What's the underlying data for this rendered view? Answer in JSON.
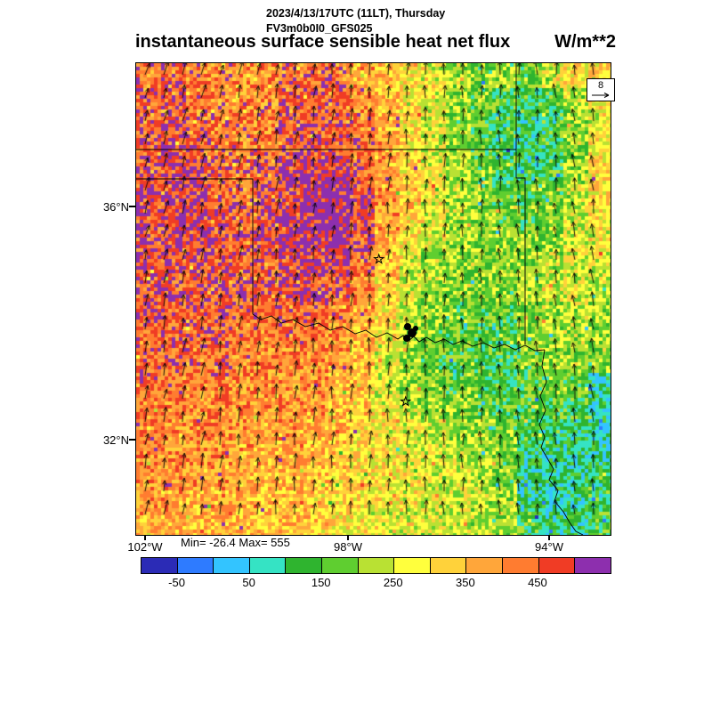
{
  "header": {
    "datetime_line": "2023/4/13/17UTC (11LT), Thursday",
    "model_line": "FV3m0b0I0_GFS025",
    "title": "instantaneous surface sensible heat net flux",
    "units": "W/m**2"
  },
  "map": {
    "lat_labels": [
      {
        "text": "36°N"
      },
      {
        "text": "32°N"
      }
    ],
    "lon_labels": [
      {
        "text": "102°W"
      },
      {
        "text": "98°W"
      },
      {
        "text": "94°W"
      }
    ],
    "minmax": "Min= -26.4 Max= 555",
    "ref_value": "8",
    "stars": [
      {
        "glyph": "☆"
      },
      {
        "glyph": "☆"
      }
    ]
  },
  "colorbar": {
    "labels": [
      "-50",
      "50",
      "150",
      "250",
      "350",
      "450"
    ]
  },
  "chart_data": {
    "type": "heatmap",
    "title": "instantaneous surface sensible heat net flux",
    "units": "W/m**2",
    "x_axis_ticks": [
      "102°W",
      "98°W",
      "94°W"
    ],
    "y_axis_ticks": [
      "36°N",
      "32°N"
    ],
    "stat_min": -26.4,
    "stat_max": 555,
    "colorbar_tick_values": [
      -50,
      50,
      150,
      250,
      350,
      450
    ],
    "levels": [
      -100,
      -50,
      0,
      50,
      100,
      150,
      200,
      250,
      300,
      350,
      400,
      450,
      500,
      550
    ],
    "palette": [
      "#2b2bb6",
      "#2e7bff",
      "#33c4ff",
      "#35e3c4",
      "#2fb42f",
      "#5fce30",
      "#b9e133",
      "#ffff3d",
      "#ffd23a",
      "#ffa63a",
      "#ff7c30",
      "#f03c25",
      "#8d2fae"
    ],
    "wind_reference": 8,
    "grid": [
      [
        430,
        450,
        420,
        400,
        390,
        400,
        430,
        440,
        430,
        380,
        340,
        300,
        280,
        230,
        180,
        210,
        170,
        260,
        300,
        310
      ],
      [
        450,
        460,
        430,
        410,
        390,
        410,
        450,
        460,
        440,
        400,
        350,
        300,
        270,
        220,
        170,
        140,
        130,
        150,
        230,
        280
      ],
      [
        450,
        470,
        450,
        420,
        400,
        420,
        460,
        470,
        450,
        420,
        360,
        310,
        260,
        210,
        160,
        125,
        115,
        130,
        200,
        270
      ],
      [
        460,
        480,
        460,
        430,
        420,
        440,
        470,
        480,
        460,
        430,
        370,
        320,
        260,
        210,
        170,
        130,
        110,
        125,
        190,
        290
      ],
      [
        470,
        490,
        470,
        440,
        430,
        450,
        480,
        515,
        520,
        460,
        380,
        330,
        270,
        220,
        180,
        140,
        125,
        140,
        210,
        300
      ],
      [
        480,
        495,
        480,
        450,
        440,
        460,
        490,
        535,
        540,
        490,
        390,
        330,
        270,
        225,
        190,
        160,
        150,
        170,
        230,
        310
      ],
      [
        470,
        485,
        490,
        460,
        450,
        470,
        500,
        540,
        530,
        480,
        380,
        320,
        260,
        220,
        200,
        180,
        170,
        190,
        250,
        300
      ],
      [
        475,
        490,
        480,
        465,
        460,
        475,
        495,
        525,
        510,
        460,
        360,
        300,
        240,
        210,
        200,
        195,
        190,
        210,
        255,
        280
      ],
      [
        480,
        475,
        470,
        470,
        455,
        465,
        480,
        500,
        480,
        430,
        340,
        270,
        220,
        200,
        195,
        190,
        205,
        225,
        260,
        265
      ],
      [
        470,
        465,
        475,
        460,
        450,
        450,
        465,
        470,
        450,
        400,
        320,
        250,
        200,
        185,
        180,
        180,
        210,
        235,
        255,
        235
      ],
      [
        465,
        455,
        450,
        455,
        440,
        435,
        450,
        445,
        420,
        380,
        300,
        230,
        190,
        175,
        165,
        160,
        195,
        225,
        240,
        215
      ],
      [
        455,
        445,
        440,
        445,
        425,
        420,
        430,
        420,
        400,
        360,
        280,
        215,
        180,
        165,
        155,
        150,
        185,
        215,
        220,
        195
      ],
      [
        445,
        435,
        425,
        430,
        415,
        405,
        415,
        400,
        380,
        345,
        265,
        205,
        175,
        160,
        150,
        145,
        175,
        200,
        200,
        175
      ],
      [
        435,
        425,
        415,
        420,
        405,
        395,
        400,
        385,
        365,
        330,
        260,
        210,
        185,
        170,
        155,
        140,
        160,
        180,
        170,
        95
      ],
      [
        425,
        415,
        405,
        410,
        395,
        385,
        390,
        375,
        355,
        320,
        270,
        230,
        210,
        190,
        170,
        150,
        145,
        150,
        140,
        85
      ],
      [
        415,
        405,
        395,
        400,
        385,
        375,
        380,
        365,
        345,
        315,
        285,
        255,
        235,
        215,
        190,
        170,
        135,
        120,
        110,
        75
      ],
      [
        405,
        395,
        385,
        390,
        375,
        365,
        370,
        355,
        335,
        305,
        290,
        270,
        255,
        235,
        205,
        180,
        110,
        95,
        90,
        85
      ],
      [
        395,
        385,
        375,
        380,
        365,
        355,
        360,
        345,
        325,
        300,
        290,
        280,
        265,
        245,
        215,
        185,
        100,
        80,
        95,
        125
      ],
      [
        385,
        375,
        365,
        370,
        355,
        345,
        350,
        335,
        315,
        290,
        280,
        270,
        260,
        250,
        225,
        195,
        105,
        80,
        90,
        130
      ],
      [
        375,
        365,
        355,
        360,
        345,
        335,
        340,
        325,
        305,
        280,
        270,
        260,
        255,
        245,
        230,
        210,
        140,
        105,
        115,
        150
      ]
    ]
  }
}
